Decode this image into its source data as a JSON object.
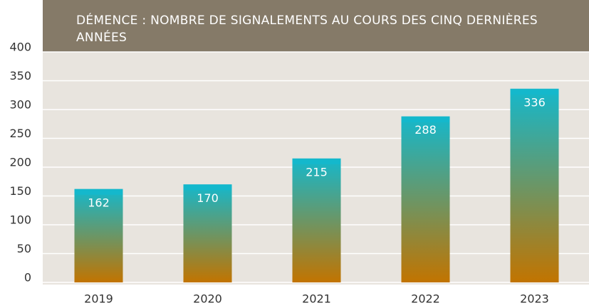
{
  "chart_data": {
    "type": "bar",
    "title": "DÉMENCE : NOMBRE DE SIGNALEMENTS AU COURS DES CINQ DERNIÈRES ANNÉES",
    "categories": [
      "2019",
      "2020",
      "2021",
      "2022",
      "2023"
    ],
    "values": [
      162,
      170,
      215,
      288,
      336
    ],
    "color": "#14b8cc",
    "color_bottom": "#c27400",
    "ylim": [
      0,
      400
    ],
    "yticks": [
      0,
      50,
      100,
      150,
      200,
      250,
      300,
      350,
      400
    ],
    "grid": true
  }
}
